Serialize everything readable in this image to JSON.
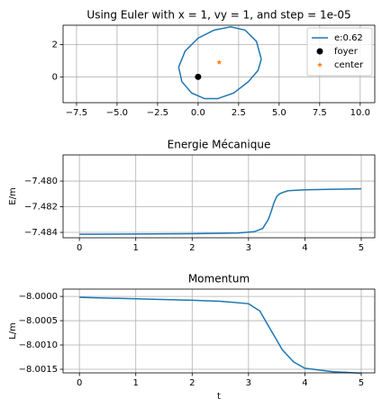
{
  "chart_data": [
    {
      "type": "line",
      "title": "Using Euler with x = 1, vy = 1, and step = 1e-05",
      "xlim": [
        -8.33,
        10.9
      ],
      "ylim": [
        -1.6,
        3.2
      ],
      "xticks": [
        {
          "value": -7.5,
          "label": "−7.5"
        },
        {
          "value": -5,
          "label": "−5.0"
        },
        {
          "value": -2.5,
          "label": "−2.5"
        },
        {
          "value": 0,
          "label": "0.0"
        },
        {
          "value": 2.5,
          "label": "2.5"
        },
        {
          "value": 5,
          "label": "5.0"
        },
        {
          "value": 7.5,
          "label": "7.5"
        },
        {
          "value": 10,
          "label": "10.0"
        }
      ],
      "yticks": [
        0,
        2
      ],
      "grid": true,
      "legend": "upper right",
      "series": [
        {
          "name": "e:0.62",
          "color": "#1f77b4",
          "marker": "none",
          "x": [
            3.9,
            3.6,
            2.9,
            2.0,
            1.0,
            0.0,
            -0.8,
            -1.2,
            -1.0,
            -0.4,
            0.4,
            1.2,
            2.2,
            3.1,
            3.7,
            3.9
          ],
          "y": [
            1.1,
            2.2,
            2.9,
            3.1,
            2.9,
            2.4,
            1.6,
            0.6,
            -0.3,
            -1.0,
            -1.35,
            -1.35,
            -1.0,
            -0.3,
            0.4,
            1.1
          ]
        },
        {
          "name": "foyer",
          "color": "#000000",
          "marker": "circle",
          "x": [
            0
          ],
          "y": [
            0
          ]
        },
        {
          "name": "center",
          "color": "#ff7f0e",
          "marker": "star",
          "x": [
            1.3
          ],
          "y": [
            0.9
          ]
        }
      ]
    },
    {
      "type": "line",
      "title": "Energie Mécanique",
      "ylabel": "E/m",
      "xlim": [
        -0.29,
        5.24
      ],
      "ylim": [
        -7.48442,
        -7.47796
      ],
      "xticks": [
        0,
        1,
        2,
        3,
        4,
        5
      ],
      "yticks": [
        {
          "value": -7.484,
          "label": "−7.484"
        },
        {
          "value": -7.482,
          "label": "−7.482"
        },
        {
          "value": -7.48,
          "label": "−7.480"
        }
      ],
      "grid": true,
      "series": [
        {
          "color": "#1f77b4",
          "marker": "none",
          "x": [
            0,
            1,
            2,
            2.8,
            3.1,
            3.25,
            3.35,
            3.4,
            3.45,
            3.5,
            3.55,
            3.6,
            3.7,
            4,
            4.5,
            5
          ],
          "y": [
            -7.48415,
            -7.48413,
            -7.4841,
            -7.48405,
            -7.48395,
            -7.4837,
            -7.483,
            -7.4824,
            -7.4817,
            -7.4812,
            -7.481,
            -7.4809,
            -7.48075,
            -7.48068,
            -7.48064,
            -7.4806
          ]
        }
      ]
    },
    {
      "type": "line",
      "title": "Momentum",
      "ylabel": "L/m",
      "xlabel": "t",
      "xlim": [
        -0.29,
        5.24
      ],
      "ylim": [
        -8.001574,
        -7.99985
      ],
      "xticks": [
        0,
        1,
        2,
        3,
        4,
        5
      ],
      "yticks": [
        {
          "value": -8.0015,
          "label": "−8.0015"
        },
        {
          "value": -8.001,
          "label": "−8.0010"
        },
        {
          "value": -8.0005,
          "label": "−8.0005"
        },
        {
          "value": -8,
          "label": "−8.0000"
        }
      ],
      "grid": true,
      "series": [
        {
          "color": "#1f77b4",
          "marker": "none",
          "x": [
            0,
            1,
            2,
            2.5,
            3,
            3.2,
            3.4,
            3.6,
            3.8,
            4,
            4.5,
            5
          ],
          "y": [
            -8.00002,
            -8.00005,
            -8.00008,
            -8.0001,
            -8.00015,
            -8.0003,
            -8.0007,
            -8.0011,
            -8.00135,
            -8.00148,
            -8.00155,
            -8.00158
          ]
        }
      ]
    }
  ]
}
